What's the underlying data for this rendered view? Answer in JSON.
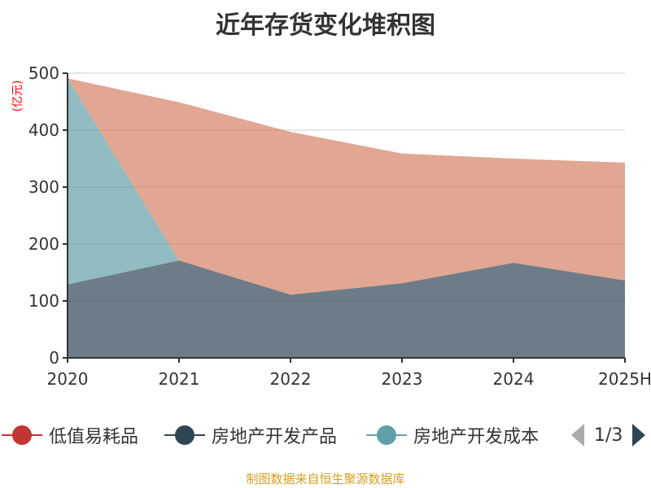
{
  "title": "近年存货变化堆积图",
  "source": "制图数据来自恒生聚源数据库",
  "legend_pager": "1/3",
  "chart_data": {
    "type": "area",
    "stacked": true,
    "title": "近年存货变化堆积图",
    "ylabel": "(亿元)",
    "categories": [
      "2020",
      "2021",
      "2022",
      "2023",
      "2024",
      "2025H"
    ],
    "ylim": [
      0,
      500
    ],
    "yticks": [
      0,
      100,
      200,
      300,
      400,
      500
    ],
    "grid": true,
    "legend_placement": "bottom",
    "series": [
      {
        "name": "低值易耗品",
        "color": "#c23531",
        "values": [
          0,
          0,
          0,
          0,
          0,
          0
        ]
      },
      {
        "name": "房地产开发产品",
        "color": "#2f4554",
        "values": [
          129,
          171,
          111,
          131,
          167,
          136
        ]
      },
      {
        "name": "房地产开发成本",
        "color": "#61a0a8",
        "values": [
          362,
          0,
          0,
          0,
          0,
          0
        ]
      },
      {
        "color": "#d48265",
        "values": [
          0,
          278,
          286,
          228,
          183,
          207
        ]
      }
    ]
  }
}
